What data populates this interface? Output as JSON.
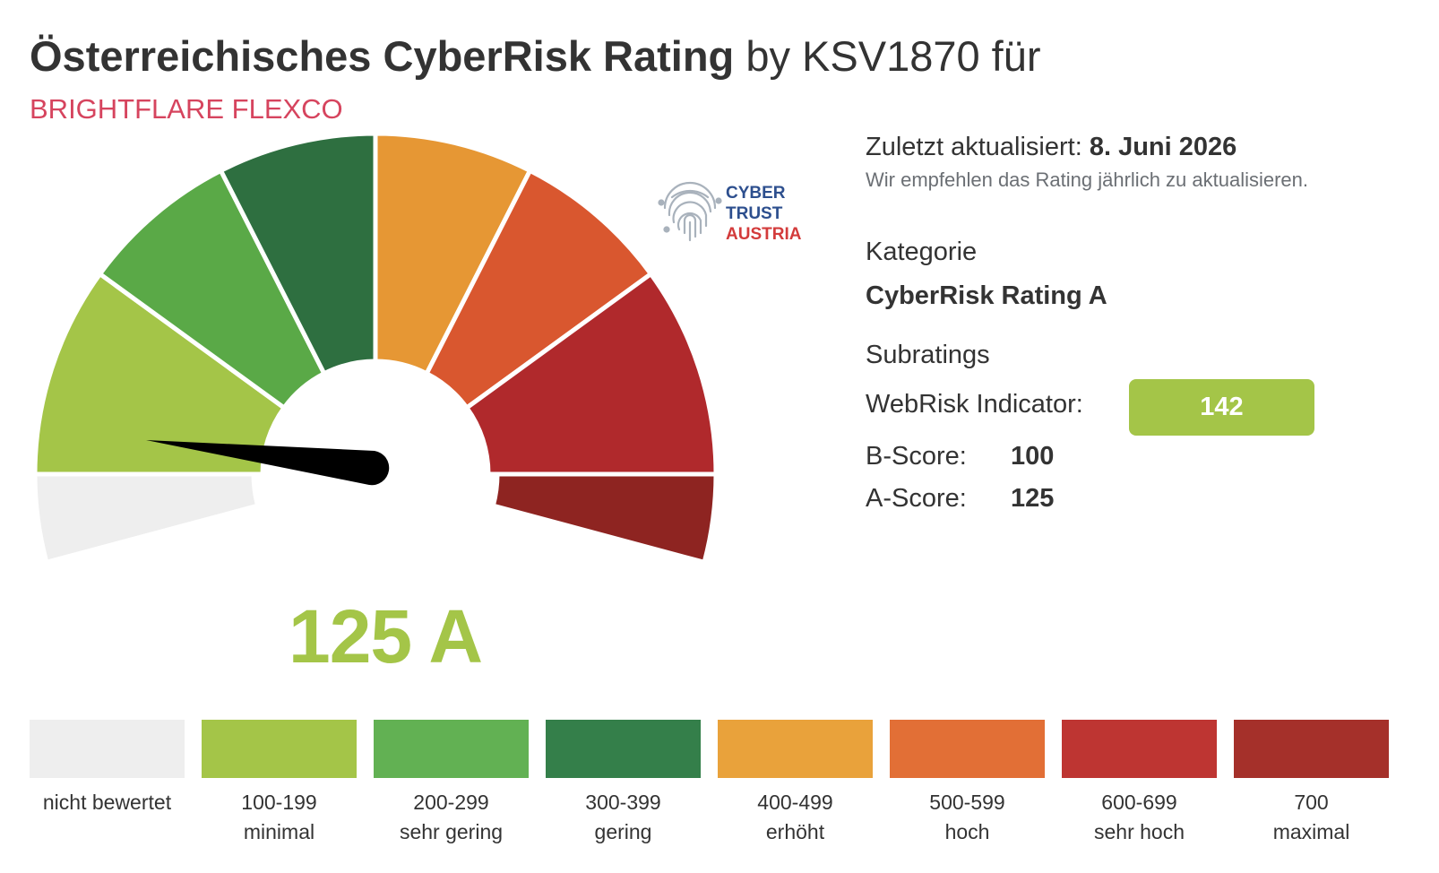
{
  "header": {
    "title_bold": "Österreichisches CyberRisk Rating",
    "title_rest": " by KSV1870 für",
    "company": "BRIGHTFLARE FLEXCO"
  },
  "logo": {
    "icon": "fingerprint-icon",
    "line1": "CYBER",
    "line2": "TRUST",
    "line3": "AUSTRIA"
  },
  "gauge": {
    "score": 125,
    "score_text": "125 A",
    "score_color": "#a4c548"
  },
  "info": {
    "updated_label": "Zuletzt aktualisiert:",
    "updated_date": "8. Juni 2026",
    "recommendation": "Wir empfehlen das Rating jährlich zu aktualisieren.",
    "category_label": "Kategorie",
    "category_value": "CyberRisk Rating A",
    "subratings_label": "Subratings",
    "webrisk_label": "WebRisk Indicator:",
    "webrisk_value": "142",
    "b_score_label": "B-Score:",
    "b_score_value": "100",
    "a_score_label": "A-Score:",
    "a_score_value": "125"
  },
  "legend": [
    {
      "range": "nicht bewertet",
      "name": "",
      "color": "#eeeeee"
    },
    {
      "range": "100-199",
      "name": "minimal",
      "color": "#a4c548"
    },
    {
      "range": "200-299",
      "name": "sehr gering",
      "color": "#62b153"
    },
    {
      "range": "300-399",
      "name": "gering",
      "color": "#347f4a"
    },
    {
      "range": "400-499",
      "name": "erhöht",
      "color": "#e9a23b"
    },
    {
      "range": "500-599",
      "name": "hoch",
      "color": "#e26f36"
    },
    {
      "range": "600-699",
      "name": "sehr hoch",
      "color": "#be3532"
    },
    {
      "range": "700",
      "name": "maximal",
      "color": "#a5302a"
    }
  ]
}
